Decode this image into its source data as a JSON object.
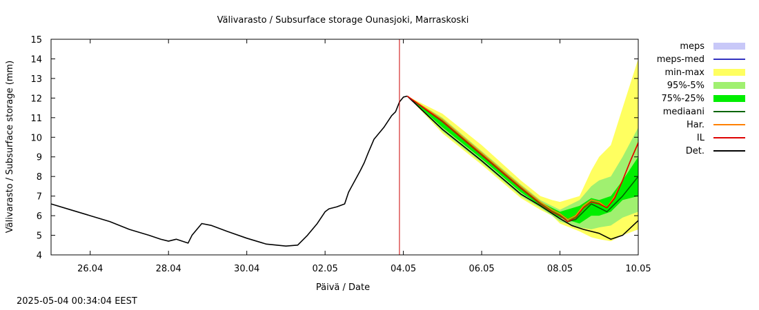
{
  "chart_data": {
    "type": "area",
    "title": "Välivarasto / Subsurface storage  Ounasjoki, Marraskoski",
    "xlabel": "Päivä / Date",
    "ylabel": "Välivarasto / Subsurface storage (mm)",
    "ylim": [
      4,
      15
    ],
    "yticks": [
      4,
      5,
      6,
      7,
      8,
      9,
      10,
      11,
      12,
      13,
      14,
      15
    ],
    "xlim": [
      0,
      15
    ],
    "xticks": [
      {
        "x": 1,
        "label": "26.04"
      },
      {
        "x": 3,
        "label": "28.04"
      },
      {
        "x": 5,
        "label": "30.04"
      },
      {
        "x": 7,
        "label": "02.05"
      },
      {
        "x": 9,
        "label": "04.05"
      },
      {
        "x": 11,
        "label": "06.05"
      },
      {
        "x": 13,
        "label": "08.05"
      },
      {
        "x": 15,
        "label": "10.05"
      }
    ],
    "x_unit": "days since 25.04 00:00",
    "forecast_start": 8.9,
    "forecast_line_color": "#cc0000",
    "legend": [
      {
        "label": "meps",
        "kind": "box",
        "color": "#c8c8f8"
      },
      {
        "label": "meps-med",
        "kind": "line",
        "color": "#3030c0"
      },
      {
        "label": "min-max",
        "kind": "box",
        "color": "#ffff60"
      },
      {
        "label": "95%-5%",
        "kind": "box",
        "color": "#a0f070"
      },
      {
        "label": "75%-25%",
        "kind": "box",
        "color": "#00ee00"
      },
      {
        "label": "mediaani",
        "kind": "line",
        "color": "#006400"
      },
      {
        "label": "Har.",
        "kind": "line",
        "color": "#ff8000"
      },
      {
        "label": "IL",
        "kind": "line",
        "color": "#dd0000"
      },
      {
        "label": "Det.",
        "kind": "line",
        "color": "#000000"
      }
    ],
    "series": [
      {
        "name": "Det. (history)",
        "color": "#000000",
        "points": [
          [
            0,
            6.6
          ],
          [
            0.5,
            6.3
          ],
          [
            1,
            6.0
          ],
          [
            1.5,
            5.7
          ],
          [
            2,
            5.3
          ],
          [
            2.5,
            5.0
          ],
          [
            2.8,
            4.8
          ],
          [
            3.0,
            4.7
          ],
          [
            3.2,
            4.8
          ],
          [
            3.5,
            4.6
          ],
          [
            3.6,
            5.0
          ],
          [
            3.85,
            5.6
          ],
          [
            4.1,
            5.5
          ],
          [
            4.5,
            5.2
          ],
          [
            5,
            4.85
          ],
          [
            5.5,
            4.55
          ],
          [
            6,
            4.45
          ],
          [
            6.3,
            4.5
          ],
          [
            6.55,
            5.0
          ],
          [
            6.8,
            5.6
          ],
          [
            7,
            6.2
          ],
          [
            7.1,
            6.35
          ],
          [
            7.3,
            6.45
          ],
          [
            7.5,
            6.6
          ],
          [
            7.6,
            7.2
          ],
          [
            7.9,
            8.3
          ],
          [
            8.0,
            8.7
          ],
          [
            8.1,
            9.2
          ],
          [
            8.25,
            9.9
          ],
          [
            8.5,
            10.5
          ],
          [
            8.7,
            11.1
          ],
          [
            8.8,
            11.3
          ],
          [
            8.9,
            11.8
          ],
          [
            9.0,
            12.05
          ],
          [
            9.1,
            12.1
          ]
        ]
      },
      {
        "name": "Det.",
        "color": "#000000",
        "points": [
          [
            9.1,
            12.1
          ],
          [
            10,
            10.4
          ],
          [
            11,
            8.8
          ],
          [
            12,
            7.1
          ],
          [
            12.5,
            6.5
          ],
          [
            13,
            5.85
          ],
          [
            13.3,
            5.5
          ],
          [
            13.6,
            5.3
          ],
          [
            14,
            5.1
          ],
          [
            14.3,
            4.8
          ],
          [
            14.6,
            5.0
          ],
          [
            15,
            5.75
          ]
        ]
      },
      {
        "name": "mediaani",
        "color": "#006400",
        "points": [
          [
            9.1,
            12.1
          ],
          [
            10,
            10.8
          ],
          [
            11,
            9.1
          ],
          [
            12,
            7.4
          ],
          [
            12.5,
            6.6
          ],
          [
            12.8,
            6.2
          ],
          [
            13,
            6.0
          ],
          [
            13.2,
            5.7
          ],
          [
            13.4,
            5.8
          ],
          [
            13.6,
            6.2
          ],
          [
            13.8,
            6.6
          ],
          [
            14,
            6.4
          ],
          [
            14.2,
            6.2
          ],
          [
            14.4,
            6.6
          ],
          [
            14.6,
            7.0
          ],
          [
            14.8,
            7.5
          ],
          [
            15,
            8.0
          ]
        ]
      },
      {
        "name": "Har.",
        "color": "#ff8000",
        "points": [
          [
            9.1,
            12.1
          ],
          [
            10,
            10.9
          ],
          [
            11,
            9.2
          ],
          [
            12,
            7.5
          ],
          [
            12.5,
            6.7
          ],
          [
            12.8,
            6.3
          ],
          [
            13,
            6.1
          ],
          [
            13.2,
            5.8
          ],
          [
            13.4,
            6.0
          ],
          [
            13.6,
            6.5
          ],
          [
            13.8,
            6.8
          ],
          [
            14,
            6.7
          ],
          [
            14.2,
            6.4
          ],
          [
            14.4,
            7.0
          ],
          [
            14.6,
            7.8
          ],
          [
            14.8,
            8.8
          ],
          [
            15,
            9.75
          ]
        ]
      },
      {
        "name": "IL",
        "color": "#dd0000",
        "points": [
          [
            9.1,
            12.1
          ],
          [
            10,
            10.8
          ],
          [
            11,
            9.1
          ],
          [
            12,
            7.4
          ],
          [
            12.5,
            6.6
          ],
          [
            12.8,
            6.2
          ],
          [
            13,
            6.0
          ],
          [
            13.2,
            5.7
          ],
          [
            13.4,
            5.9
          ],
          [
            13.6,
            6.4
          ],
          [
            13.8,
            6.7
          ],
          [
            14,
            6.6
          ],
          [
            14.2,
            6.4
          ],
          [
            14.4,
            6.9
          ],
          [
            14.6,
            7.8
          ],
          [
            14.8,
            8.8
          ],
          [
            15,
            9.7
          ]
        ]
      }
    ],
    "bands": [
      {
        "name": "min-max",
        "color": "#ffff60",
        "points": [
          [
            9.1,
            12.1,
            12.1
          ],
          [
            10,
            11.2,
            10.2
          ],
          [
            11,
            9.6,
            8.6
          ],
          [
            12,
            7.8,
            6.9
          ],
          [
            12.5,
            7.0,
            6.3
          ],
          [
            12.8,
            6.8,
            6.0
          ],
          [
            13,
            6.7,
            5.6
          ],
          [
            13.5,
            7.0,
            5.2
          ],
          [
            13.8,
            8.3,
            4.9
          ],
          [
            14,
            9.0,
            4.8
          ],
          [
            14.3,
            9.6,
            4.7
          ],
          [
            14.6,
            11.5,
            5.0
          ],
          [
            15,
            14.0,
            5.3
          ]
        ]
      },
      {
        "name": "95%-5%",
        "color": "#a0f070",
        "points": [
          [
            9.1,
            12.1,
            12.1
          ],
          [
            10,
            11.0,
            10.3
          ],
          [
            11,
            9.3,
            8.7
          ],
          [
            12,
            7.6,
            7.0
          ],
          [
            12.5,
            6.8,
            6.4
          ],
          [
            12.8,
            6.5,
            6.0
          ],
          [
            13,
            6.3,
            5.7
          ],
          [
            13.5,
            6.8,
            5.4
          ],
          [
            13.8,
            7.5,
            5.3
          ],
          [
            14,
            7.8,
            5.4
          ],
          [
            14.3,
            8.0,
            5.5
          ],
          [
            14.6,
            9.0,
            5.9
          ],
          [
            15,
            10.5,
            6.2
          ]
        ]
      },
      {
        "name": "75%-25%",
        "color": "#00ee00",
        "points": [
          [
            9.1,
            12.1,
            12.1
          ],
          [
            10,
            10.9,
            10.5
          ],
          [
            11,
            9.2,
            8.9
          ],
          [
            12,
            7.5,
            7.2
          ],
          [
            12.5,
            6.7,
            6.5
          ],
          [
            12.8,
            6.4,
            6.1
          ],
          [
            13,
            6.2,
            5.9
          ],
          [
            13.5,
            6.5,
            5.6
          ],
          [
            13.8,
            6.9,
            6.0
          ],
          [
            14,
            6.8,
            6.0
          ],
          [
            14.3,
            7.0,
            6.2
          ],
          [
            14.6,
            7.8,
            6.8
          ],
          [
            15,
            9.0,
            7.0
          ]
        ]
      }
    ]
  },
  "footer": {
    "timestamp": "2025-05-04 00:34:04 EEST"
  }
}
